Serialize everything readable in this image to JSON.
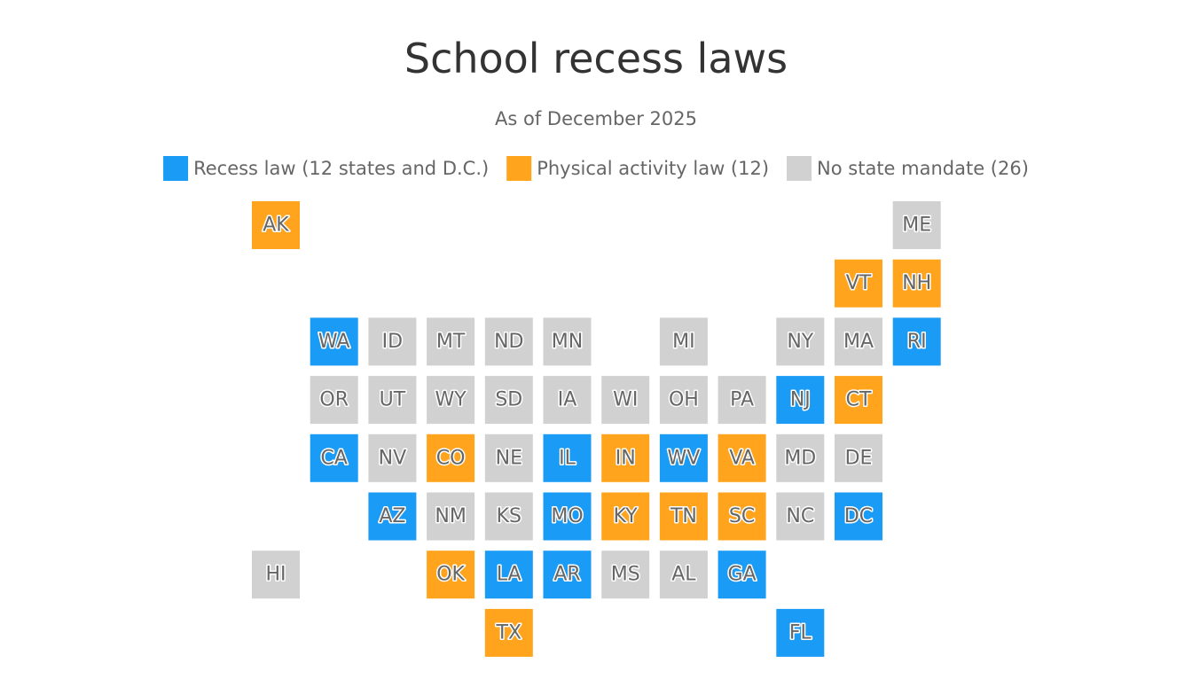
{
  "header": {
    "title": "School recess laws",
    "subtitle": "As of December 2025"
  },
  "legend": [
    {
      "name": "Recess law (12 states and D.C.)",
      "color": "#1a9bf5"
    },
    {
      "name": "Physical activity law (12)",
      "color": "#ffa41c"
    },
    {
      "name": "No state mandate (26)",
      "color": "#d1d1d1"
    }
  ],
  "map": {
    "rows": [
      [
        {
          "label": "AK",
          "color": "#ffa41c"
        },
        null,
        null,
        null,
        null,
        null,
        null,
        null,
        null,
        null,
        null,
        {
          "label": "ME",
          "color": "#d1d1d1"
        }
      ],
      [
        null,
        null,
        null,
        null,
        null,
        null,
        null,
        null,
        null,
        null,
        {
          "label": "VT",
          "color": "#ffa41c"
        },
        {
          "label": "NH",
          "color": "#ffa41c"
        }
      ],
      [
        null,
        {
          "label": "WA",
          "color": "#1a9bf5"
        },
        {
          "label": "ID",
          "color": "#d1d1d1"
        },
        {
          "label": "MT",
          "color": "#d1d1d1"
        },
        {
          "label": "ND",
          "color": "#d1d1d1"
        },
        {
          "label": "MN",
          "color": "#d1d1d1"
        },
        null,
        {
          "label": "MI",
          "color": "#d1d1d1"
        },
        null,
        {
          "label": "NY",
          "color": "#d1d1d1"
        },
        {
          "label": "MA",
          "color": "#d1d1d1"
        },
        {
          "label": "RI",
          "color": "#1a9bf5"
        }
      ],
      [
        null,
        {
          "label": "OR",
          "color": "#d1d1d1"
        },
        {
          "label": "UT",
          "color": "#d1d1d1"
        },
        {
          "label": "WY",
          "color": "#d1d1d1"
        },
        {
          "label": "SD",
          "color": "#d1d1d1"
        },
        {
          "label": "IA",
          "color": "#d1d1d1"
        },
        {
          "label": "WI",
          "color": "#d1d1d1"
        },
        {
          "label": "OH",
          "color": "#d1d1d1"
        },
        {
          "label": "PA",
          "color": "#d1d1d1"
        },
        {
          "label": "NJ",
          "color": "#1a9bf5"
        },
        {
          "label": "CT",
          "color": "#ffa41c"
        },
        null
      ],
      [
        null,
        {
          "label": "CA",
          "color": "#1a9bf5"
        },
        {
          "label": "NV",
          "color": "#d1d1d1"
        },
        {
          "label": "CO",
          "color": "#ffa41c"
        },
        {
          "label": "NE",
          "color": "#d1d1d1"
        },
        {
          "label": "IL",
          "color": "#1a9bf5"
        },
        {
          "label": "IN",
          "color": "#ffa41c"
        },
        {
          "label": "WV",
          "color": "#1a9bf5"
        },
        {
          "label": "VA",
          "color": "#ffa41c"
        },
        {
          "label": "MD",
          "color": "#d1d1d1"
        },
        {
          "label": "DE",
          "color": "#d1d1d1"
        },
        null
      ],
      [
        null,
        null,
        {
          "label": "AZ",
          "color": "#1a9bf5"
        },
        {
          "label": "NM",
          "color": "#d1d1d1"
        },
        {
          "label": "KS",
          "color": "#d1d1d1"
        },
        {
          "label": "MO",
          "color": "#1a9bf5"
        },
        {
          "label": "KY",
          "color": "#ffa41c"
        },
        {
          "label": "TN",
          "color": "#ffa41c"
        },
        {
          "label": "SC",
          "color": "#ffa41c"
        },
        {
          "label": "NC",
          "color": "#d1d1d1"
        },
        {
          "label": "DC",
          "color": "#1a9bf5"
        },
        null
      ],
      [
        {
          "label": "HI",
          "color": "#d1d1d1"
        },
        null,
        null,
        {
          "label": "OK",
          "color": "#ffa41c"
        },
        {
          "label": "LA",
          "color": "#1a9bf5"
        },
        {
          "label": "AR",
          "color": "#1a9bf5"
        },
        {
          "label": "MS",
          "color": "#d1d1d1"
        },
        {
          "label": "AL",
          "color": "#d1d1d1"
        },
        {
          "label": "GA",
          "color": "#1a9bf5"
        },
        null,
        null,
        null
      ],
      [
        null,
        null,
        null,
        null,
        {
          "label": "TX",
          "color": "#ffa41c"
        },
        null,
        null,
        null,
        null,
        {
          "label": "FL",
          "color": "#1a9bf5"
        },
        null,
        null
      ]
    ]
  }
}
